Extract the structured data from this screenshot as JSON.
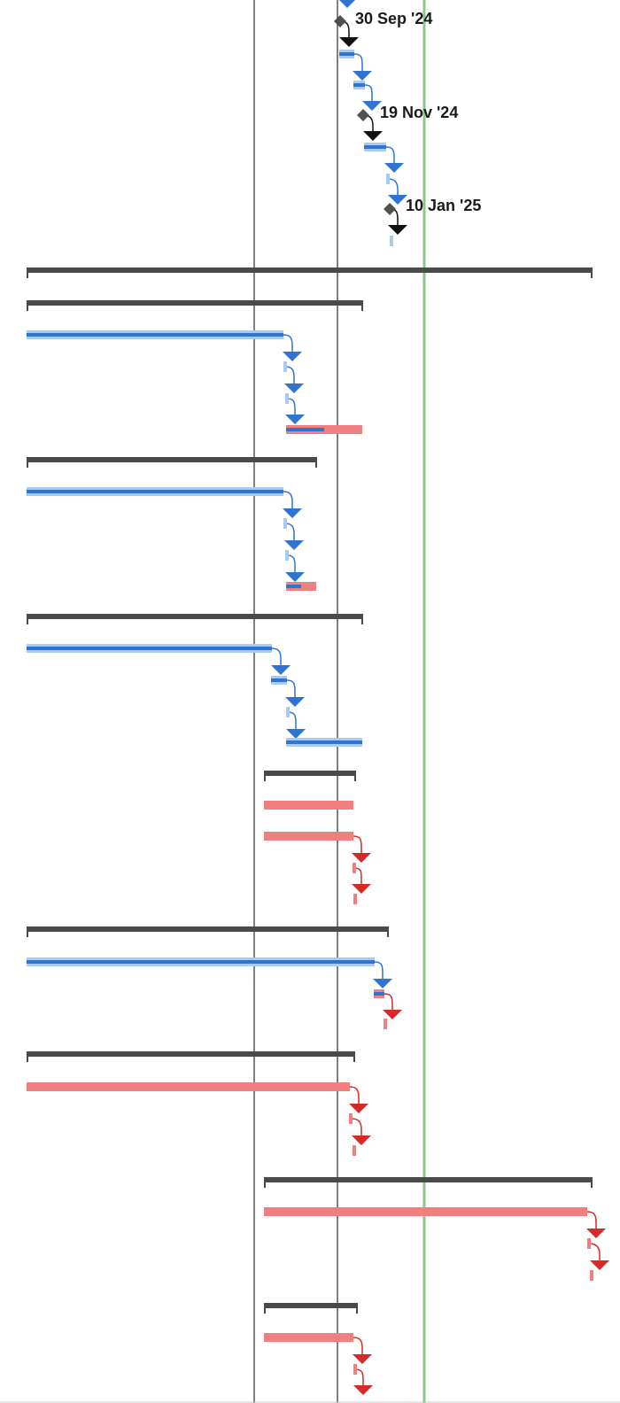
{
  "colors": {
    "normal": "#4a90e2",
    "normal_light": "#a9cbf2",
    "normal_dark": "#2f74d0",
    "critical": "#f08080",
    "critical_dark": "#d42a2a",
    "summary": "#4a4a4a",
    "milestone": "#505050",
    "status_line": "#8fc48f",
    "grid": "#000000"
  },
  "chart_data": {
    "type": "gantt",
    "milestones": [
      {
        "label": "30 Sep '24"
      },
      {
        "label": "19 Nov '24"
      },
      {
        "label": "10 Jan '25"
      }
    ],
    "task_rows": [
      {
        "kind": "summary"
      },
      {
        "kind": "summary"
      },
      {
        "kind": "task",
        "style": "normal"
      },
      {
        "kind": "task",
        "style": "normal"
      },
      {
        "kind": "task",
        "style": "normal"
      },
      {
        "kind": "task",
        "style": "critical"
      },
      {
        "kind": "summary"
      },
      {
        "kind": "task",
        "style": "normal"
      },
      {
        "kind": "task",
        "style": "normal"
      },
      {
        "kind": "task",
        "style": "normal"
      },
      {
        "kind": "task",
        "style": "critical"
      },
      {
        "kind": "summary"
      },
      {
        "kind": "task",
        "style": "normal"
      },
      {
        "kind": "task",
        "style": "normal"
      },
      {
        "kind": "task",
        "style": "normal"
      },
      {
        "kind": "task",
        "style": "normal"
      },
      {
        "kind": "summary"
      },
      {
        "kind": "task",
        "style": "critical"
      },
      {
        "kind": "task",
        "style": "critical"
      },
      {
        "kind": "task",
        "style": "critical"
      },
      {
        "kind": "task",
        "style": "critical"
      },
      {
        "kind": "summary"
      },
      {
        "kind": "task",
        "style": "normal"
      },
      {
        "kind": "task",
        "style": "normal"
      },
      {
        "kind": "task",
        "style": "critical"
      },
      {
        "kind": "summary"
      },
      {
        "kind": "task",
        "style": "critical"
      },
      {
        "kind": "task",
        "style": "critical"
      },
      {
        "kind": "task",
        "style": "critical"
      },
      {
        "kind": "summary"
      },
      {
        "kind": "task",
        "style": "critical"
      },
      {
        "kind": "task",
        "style": "critical"
      },
      {
        "kind": "task",
        "style": "critical"
      },
      {
        "kind": "summary"
      },
      {
        "kind": "task",
        "style": "critical"
      },
      {
        "kind": "task",
        "style": "critical"
      }
    ]
  }
}
